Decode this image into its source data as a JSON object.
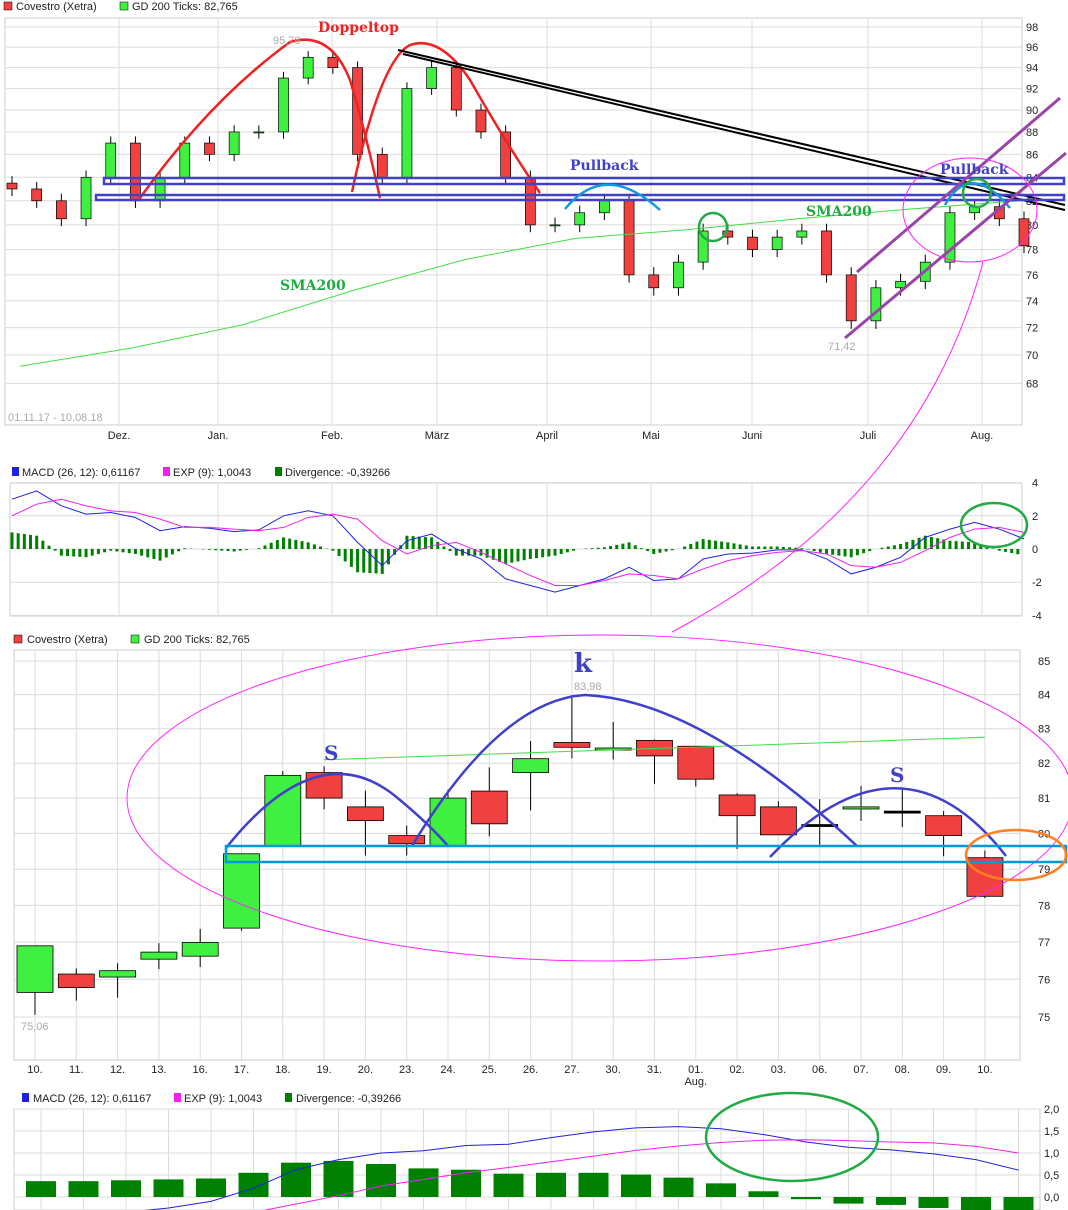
{
  "legend_top": {
    "series": "Covestro (Xetra)",
    "sma": "GD 200 Ticks: 82,765",
    "range": "01.11.17 - 10.08.18"
  },
  "legend_macd": {
    "macd": "MACD (26, 12): 0,61167",
    "exp": "EXP (9): 1,0043",
    "div": "Divergence: -0,39266"
  },
  "annotations": {
    "doppeltop": "Doppeltop",
    "pullback1": "Pullback",
    "pullback2": "Pullback",
    "sma1": "SMA200",
    "sma2": "SMA200",
    "k": "k",
    "s1": "S",
    "s2": "S",
    "max_top": "95,78",
    "min_top": "71,42",
    "max_bottom": "83,98",
    "min_bottom": "75,06"
  },
  "colors": {
    "up": "#40f040",
    "down": "#f04040",
    "sma": "#40e040",
    "macd": "#2020e0",
    "exp": "#f020f0",
    "div": "#008000",
    "doppeltop": "#ee2222",
    "support": "#4040cc",
    "neckline": "#0099dd",
    "channel": "#9944aa"
  },
  "chart_data": [
    {
      "type": "candlestick",
      "title": "Covestro (Xetra)",
      "scale": "log",
      "ylim": [
        66,
        99
      ],
      "yticks": [
        98,
        96,
        94,
        92,
        90,
        88,
        86,
        84,
        82,
        80,
        78,
        76,
        74,
        72,
        70,
        68
      ],
      "xticks": [
        "Dez.",
        "Jan.",
        "Feb.",
        "März",
        "April",
        "Mai",
        "Juni",
        "Juli",
        "Aug."
      ],
      "weekly_close": [
        83,
        82,
        80.5,
        84,
        87,
        82,
        84,
        87,
        86,
        88,
        88,
        93,
        95,
        94,
        86,
        84,
        92,
        94,
        90,
        88,
        84,
        80,
        80,
        81,
        82,
        76,
        75,
        77,
        79.5,
        79,
        78,
        79,
        79.5,
        76,
        72.5,
        75,
        75.5,
        77,
        81,
        81.5,
        80.5,
        78.3
      ],
      "sma200": [
        69.2,
        70.5,
        72.2,
        74.8,
        77.2,
        78.9,
        79.6,
        80.5,
        81.3,
        82.0
      ],
      "grid": true
    },
    {
      "type": "line",
      "yticks": [
        4,
        2,
        0,
        -2,
        -4
      ],
      "ylim": [
        -4,
        4
      ],
      "macd": [
        3.0,
        3.5,
        2.6,
        2.1,
        2.2,
        1.9,
        1.1,
        1.35,
        1.25,
        1.05,
        1.15,
        2.0,
        2.3,
        2.0,
        0.4,
        -1.0,
        0.5,
        0.9,
        0.0,
        -0.6,
        -1.8,
        -2.2,
        -2.6,
        -2.2,
        -1.8,
        -1.1,
        -1.9,
        -1.8,
        -0.6,
        -0.3,
        -0.25,
        -0.05,
        -0.05,
        -0.6,
        -1.5,
        -1.1,
        -0.5,
        0.7,
        1.2,
        1.6,
        1.2,
        0.61
      ],
      "exp": [
        2.0,
        2.7,
        3.0,
        2.6,
        2.3,
        2.2,
        1.8,
        1.3,
        1.3,
        1.2,
        1.1,
        1.3,
        1.9,
        2.1,
        1.8,
        0.5,
        -0.3,
        0.2,
        0.4,
        -0.2,
        -0.9,
        -1.6,
        -2.2,
        -2.2,
        -1.9,
        -1.5,
        -1.6,
        -1.8,
        -1.2,
        -0.7,
        -0.4,
        -0.2,
        -0.1,
        -0.3,
        -1.0,
        -1.1,
        -0.8,
        -0.1,
        0.7,
        1.2,
        1.3,
        1.0
      ]
    },
    {
      "type": "candlestick",
      "title": "Covestro (Xetra)",
      "scale": "log",
      "ylim": [
        74.2,
        85.3
      ],
      "yticks": [
        85,
        84,
        83,
        82,
        81,
        80,
        79,
        78,
        77,
        76,
        75
      ],
      "categories": [
        "10.",
        "11.",
        "12.",
        "13.",
        "16.",
        "17.",
        "18.",
        "19.",
        "20.",
        "23.",
        "24.",
        "25.",
        "26.",
        "27.",
        "30.",
        "31.",
        "01.",
        "02.",
        "03.",
        "06.",
        "07.",
        "08.",
        "09.",
        "10."
      ],
      "month_label": "Aug.",
      "open": [
        75.65,
        76.14,
        76.06,
        76.54,
        76.62,
        77.38,
        79.65,
        81.73,
        80.75,
        79.94,
        79.65,
        81.2,
        81.73,
        82.6,
        82.38,
        82.66,
        82.49,
        81.09,
        80.75,
        80.25,
        80.69,
        80.63,
        80.5,
        79.32
      ],
      "close": [
        76.9,
        75.78,
        76.23,
        76.73,
        76.99,
        79.43,
        81.65,
        81.0,
        80.36,
        79.71,
        81.0,
        80.27,
        82.13,
        82.46,
        82.44,
        82.21,
        81.54,
        80.5,
        79.96,
        80.25,
        80.75,
        80.63,
        79.94,
        78.25
      ],
      "high": [
        76.9,
        76.29,
        76.43,
        76.97,
        77.36,
        79.43,
        81.77,
        81.91,
        81.21,
        80.22,
        81.24,
        81.88,
        82.64,
        83.98,
        83.2,
        82.69,
        82.49,
        81.14,
        80.91,
        80.97,
        81.35,
        81.3,
        80.63,
        79.52
      ],
      "low": [
        75.06,
        75.43,
        75.51,
        76.27,
        76.33,
        77.31,
        79.62,
        80.68,
        79.38,
        79.38,
        79.65,
        79.92,
        80.65,
        82.14,
        82.11,
        81.41,
        81.33,
        79.56,
        79.96,
        79.62,
        80.35,
        80.18,
        79.36,
        78.2
      ],
      "sma200_from": 82.1,
      "sma200_to": 82.75,
      "grid": true
    },
    {
      "type": "bar+line",
      "yticks": [
        "2,0",
        "1,5",
        "1,0",
        "0,5",
        "0,0"
      ],
      "ylim": [
        -0.3,
        2.0
      ],
      "macd": [
        -0.6,
        -0.5,
        -0.35,
        -0.25,
        -0.1,
        0.2,
        0.62,
        0.85,
        1.0,
        1.05,
        1.17,
        1.2,
        1.35,
        1.48,
        1.57,
        1.6,
        1.55,
        1.42,
        1.25,
        1.13,
        1.07,
        0.98,
        0.85,
        0.61
      ],
      "exp": [
        -0.96,
        -0.86,
        -0.73,
        -0.65,
        -0.52,
        -0.35,
        -0.16,
        0.03,
        0.25,
        0.4,
        0.55,
        0.67,
        0.8,
        0.93,
        1.06,
        1.16,
        1.24,
        1.29,
        1.3,
        1.28,
        1.25,
        1.23,
        1.15,
        1.0
      ],
      "divergence": [
        0.36,
        0.36,
        0.38,
        0.4,
        0.42,
        0.55,
        0.78,
        0.82,
        0.75,
        0.65,
        0.62,
        0.53,
        0.55,
        0.55,
        0.51,
        0.44,
        0.31,
        0.13,
        -0.05,
        -0.15,
        -0.18,
        -0.25,
        -0.3,
        -0.39
      ]
    }
  ]
}
